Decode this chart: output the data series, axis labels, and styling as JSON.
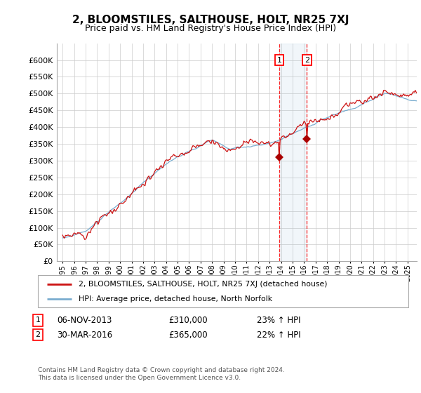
{
  "title": "2, BLOOMSTILES, SALTHOUSE, HOLT, NR25 7XJ",
  "subtitle": "Price paid vs. HM Land Registry's House Price Index (HPI)",
  "legend_line1": "2, BLOOMSTILES, SALTHOUSE, HOLT, NR25 7XJ (detached house)",
  "legend_line2": "HPI: Average price, detached house, North Norfolk",
  "sale1_date": "06-NOV-2013",
  "sale1_price": 310000,
  "sale1_pct": "23%",
  "sale2_date": "30-MAR-2016",
  "sale2_price": 365000,
  "sale2_pct": "22%",
  "footnote": "Contains HM Land Registry data © Crown copyright and database right 2024.\nThis data is licensed under the Open Government Licence v3.0.",
  "hpi_color": "#7aadcf",
  "price_color": "#cc1111",
  "sale_marker_color": "#aa0000",
  "background_color": "#ffffff",
  "grid_color": "#cccccc",
  "ylim": [
    0,
    650000
  ],
  "yticks": [
    0,
    50000,
    100000,
    150000,
    200000,
    250000,
    300000,
    350000,
    400000,
    450000,
    500000,
    550000,
    600000
  ],
  "sale1_x": 2013.84,
  "sale2_x": 2016.25,
  "sale1_y": 310000,
  "sale2_y": 365000,
  "xlim_left": 1994.5,
  "xlim_right": 2025.8
}
